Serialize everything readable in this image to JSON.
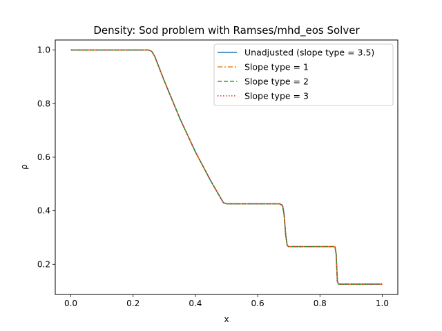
{
  "chart_data": {
    "type": "line",
    "title": "Density: Sod problem with Ramses/mhd_eos Solver",
    "xlabel": "x",
    "ylabel": "ρ",
    "xlim": [
      -0.05,
      1.05
    ],
    "ylim": [
      0.0875,
      1.0375
    ],
    "xticks": [
      0.0,
      0.2,
      0.4,
      0.6,
      0.8,
      1.0
    ],
    "xtick_labels": [
      "0.0",
      "0.2",
      "0.4",
      "0.6",
      "0.8",
      "1.0"
    ],
    "yticks": [
      0.2,
      0.4,
      0.6,
      0.8,
      1.0
    ],
    "ytick_labels": [
      "0.2",
      "0.4",
      "0.6",
      "0.8",
      "1.0"
    ],
    "grid": false,
    "legend_position": "upper right",
    "x": [
      0.0,
      0.1,
      0.2,
      0.25,
      0.26,
      0.27,
      0.28,
      0.3,
      0.35,
      0.4,
      0.45,
      0.49,
      0.5,
      0.55,
      0.6,
      0.65,
      0.67,
      0.68,
      0.685,
      0.69,
      0.695,
      0.7,
      0.75,
      0.8,
      0.84,
      0.848,
      0.852,
      0.856,
      0.86,
      0.9,
      0.95,
      1.0
    ],
    "series": [
      {
        "name": "Unadjusted (slope type = 3.5)",
        "color": "#1f77b4",
        "style": "solid",
        "values": [
          1.0,
          1.0,
          1.0,
          1.0,
          0.995,
          0.975,
          0.945,
          0.885,
          0.745,
          0.62,
          0.51,
          0.43,
          0.426,
          0.426,
          0.426,
          0.426,
          0.426,
          0.42,
          0.385,
          0.31,
          0.27,
          0.266,
          0.266,
          0.266,
          0.266,
          0.266,
          0.24,
          0.135,
          0.126,
          0.126,
          0.126,
          0.126
        ]
      },
      {
        "name": "Slope type = 1",
        "color": "#ff7f0e",
        "style": "dashdot",
        "values": [
          1.0,
          1.0,
          1.0,
          1.0,
          0.995,
          0.975,
          0.945,
          0.885,
          0.745,
          0.62,
          0.51,
          0.43,
          0.426,
          0.426,
          0.426,
          0.426,
          0.426,
          0.42,
          0.385,
          0.31,
          0.27,
          0.266,
          0.266,
          0.266,
          0.266,
          0.266,
          0.24,
          0.135,
          0.126,
          0.126,
          0.126,
          0.126
        ]
      },
      {
        "name": "Slope type = 2",
        "color": "#2ca02c",
        "style": "dashed",
        "values": [
          1.0,
          1.0,
          1.0,
          1.0,
          0.995,
          0.975,
          0.945,
          0.885,
          0.745,
          0.62,
          0.51,
          0.43,
          0.426,
          0.426,
          0.426,
          0.426,
          0.426,
          0.42,
          0.385,
          0.31,
          0.27,
          0.266,
          0.266,
          0.266,
          0.266,
          0.266,
          0.24,
          0.135,
          0.126,
          0.126,
          0.126,
          0.126
        ]
      },
      {
        "name": "Slope type = 3",
        "color": "#d62728",
        "style": "dotted",
        "values": [
          1.0,
          1.0,
          1.0,
          1.0,
          0.995,
          0.975,
          0.945,
          0.885,
          0.745,
          0.62,
          0.51,
          0.43,
          0.426,
          0.426,
          0.426,
          0.426,
          0.426,
          0.42,
          0.385,
          0.31,
          0.27,
          0.266,
          0.266,
          0.266,
          0.266,
          0.266,
          0.24,
          0.135,
          0.126,
          0.126,
          0.126,
          0.126
        ]
      }
    ]
  }
}
